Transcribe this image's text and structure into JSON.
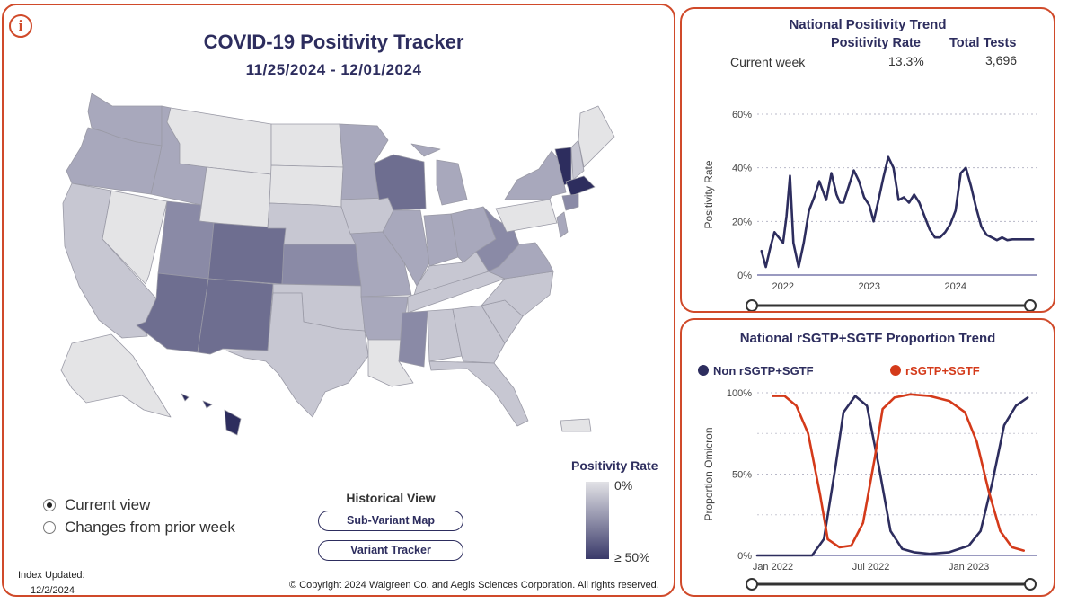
{
  "header": {
    "title": "COVID-19 Positivity Tracker",
    "date_range": "11/25/2024 - 12/01/2024",
    "info_icon": "i"
  },
  "view_options": [
    {
      "label": "Current view",
      "selected": true
    },
    {
      "label": "Changes from prior week",
      "selected": false
    }
  ],
  "historical": {
    "label": "Historical View",
    "buttons": [
      "Sub-Variant Map",
      "Variant Tracker"
    ]
  },
  "legend": {
    "title": "Positivity Rate",
    "min_label": "0%",
    "max_label": "≥ 50%",
    "colors": {
      "low": "#e2e2e6",
      "high": "#3a3a6a"
    }
  },
  "footer": {
    "index_label": "Index Updated:",
    "index_date": "12/2/2024",
    "copyright": "© Copyright 2024 Walgreen Co. and Aegis Sciences Corporation. All rights reserved."
  },
  "national_trend": {
    "title": "National Positivity Trend",
    "columns": [
      "Positivity Rate",
      "Total Tests"
    ],
    "row": {
      "label": "Current week",
      "rate": "13.3%",
      "tests": "3,696"
    },
    "chart_data": {
      "type": "line",
      "ylabel": "Positivity Rate",
      "y_ticks": [
        "0%",
        "20%",
        "40%",
        "60%"
      ],
      "ylim": [
        0,
        60
      ],
      "x_ticks": [
        "2022",
        "2023",
        "2024"
      ],
      "xlim": [
        2021.7,
        2024.95
      ],
      "series": [
        {
          "color": "#2d2d5e",
          "x": [
            2021.75,
            2021.8,
            2021.85,
            2021.9,
            2021.95,
            2022.0,
            2022.04,
            2022.08,
            2022.12,
            2022.18,
            2022.24,
            2022.3,
            2022.36,
            2022.42,
            2022.5,
            2022.56,
            2022.62,
            2022.66,
            2022.7,
            2022.76,
            2022.82,
            2022.88,
            2022.94,
            2023.0,
            2023.05,
            2023.1,
            2023.16,
            2023.22,
            2023.28,
            2023.34,
            2023.4,
            2023.46,
            2023.52,
            2023.58,
            2023.64,
            2023.7,
            2023.76,
            2023.82,
            2023.88,
            2023.94,
            2024.0,
            2024.06,
            2024.12,
            2024.18,
            2024.24,
            2024.3,
            2024.36,
            2024.42,
            2024.48,
            2024.54,
            2024.6,
            2024.66,
            2024.72,
            2024.78,
            2024.84,
            2024.9
          ],
          "y": [
            9,
            3,
            10,
            16,
            14,
            12,
            22,
            37,
            12,
            3,
            12,
            24,
            29,
            35,
            28,
            38,
            30,
            27,
            27,
            33,
            39,
            35,
            29,
            26,
            20,
            27,
            36,
            44,
            40,
            28,
            29,
            27,
            30,
            27,
            22,
            17,
            14,
            14,
            16,
            19,
            24,
            38,
            40,
            33,
            25,
            18,
            15,
            14,
            13,
            14,
            13,
            13.3,
            13.3,
            13.3,
            13.3,
            13.3
          ]
        }
      ]
    }
  },
  "variant_trend": {
    "title": "National rSGTP+SGTF Proportion Trend",
    "chart_data": {
      "type": "line",
      "ylabel": "Proportion Omicron",
      "y_ticks": [
        "0%",
        "50%",
        "100%"
      ],
      "ylim": [
        0,
        100
      ],
      "x_ticks": [
        "Jan 2022",
        "Jul 2022",
        "Jan 2023"
      ],
      "xlim": [
        2021.92,
        2023.35
      ],
      "series": [
        {
          "name": "Non rSGTP+SGTF",
          "color": "#2d2d5e",
          "x": [
            2021.92,
            2022.0,
            2022.1,
            2022.2,
            2022.26,
            2022.32,
            2022.36,
            2022.42,
            2022.48,
            2022.54,
            2022.6,
            2022.66,
            2022.72,
            2022.8,
            2022.9,
            2023.0,
            2023.06,
            2023.12,
            2023.18,
            2023.24,
            2023.3
          ],
          "y": [
            0,
            0,
            0,
            0,
            10,
            55,
            88,
            98,
            92,
            55,
            15,
            4,
            2,
            1,
            2,
            6,
            15,
            45,
            80,
            92,
            97
          ]
        },
        {
          "name": "rSGTP+SGTF",
          "color": "#d43a1a",
          "x": [
            2022.0,
            2022.06,
            2022.12,
            2022.18,
            2022.24,
            2022.28,
            2022.34,
            2022.4,
            2022.46,
            2022.52,
            2022.56,
            2022.62,
            2022.7,
            2022.8,
            2022.9,
            2022.98,
            2023.04,
            2023.1,
            2023.16,
            2023.22,
            2023.28
          ],
          "y": [
            98,
            98,
            92,
            75,
            38,
            10,
            5,
            6,
            20,
            60,
            90,
            97,
            99,
            98,
            95,
            88,
            70,
            40,
            15,
            5,
            3
          ]
        }
      ]
    }
  },
  "map": {
    "color_scale": [
      "#e4e4e6",
      "#c7c7d2",
      "#a8a8bc",
      "#8a8aa6",
      "#6e6e90",
      "#2d2d5e"
    ],
    "states": [
      {
        "id": "WA",
        "level": 2
      },
      {
        "id": "OR",
        "level": 2
      },
      {
        "id": "CA",
        "level": 1
      },
      {
        "id": "NV",
        "level": 0
      },
      {
        "id": "ID",
        "level": 2
      },
      {
        "id": "MT",
        "level": 0
      },
      {
        "id": "WY",
        "level": 0
      },
      {
        "id": "UT",
        "level": 3
      },
      {
        "id": "AZ",
        "level": 4
      },
      {
        "id": "CO",
        "level": 4
      },
      {
        "id": "NM",
        "level": 4
      },
      {
        "id": "ND",
        "level": 0
      },
      {
        "id": "SD",
        "level": 0
      },
      {
        "id": "NE",
        "level": 1
      },
      {
        "id": "KS",
        "level": 3
      },
      {
        "id": "OK",
        "level": 1
      },
      {
        "id": "TX",
        "level": 1
      },
      {
        "id": "MN",
        "level": 2
      },
      {
        "id": "IA",
        "level": 1
      },
      {
        "id": "MO",
        "level": 2
      },
      {
        "id": "AR",
        "level": 2
      },
      {
        "id": "LA",
        "level": 0
      },
      {
        "id": "WI",
        "level": 4
      },
      {
        "id": "IL",
        "level": 2
      },
      {
        "id": "MI",
        "level": 2
      },
      {
        "id": "IN",
        "level": 2
      },
      {
        "id": "OH",
        "level": 2
      },
      {
        "id": "KY",
        "level": 1
      },
      {
        "id": "TN",
        "level": 1
      },
      {
        "id": "MS",
        "level": 3
      },
      {
        "id": "AL",
        "level": 1
      },
      {
        "id": "GA",
        "level": 1
      },
      {
        "id": "FL",
        "level": 1
      },
      {
        "id": "SC",
        "level": 1
      },
      {
        "id": "NC",
        "level": 1
      },
      {
        "id": "VA",
        "level": 2
      },
      {
        "id": "WV",
        "level": 3
      },
      {
        "id": "PA",
        "level": 0
      },
      {
        "id": "NY",
        "level": 2
      },
      {
        "id": "VT",
        "level": 5
      },
      {
        "id": "NH",
        "level": 1
      },
      {
        "id": "ME",
        "level": 0
      },
      {
        "id": "MA",
        "level": 5
      },
      {
        "id": "CT",
        "level": 3
      },
      {
        "id": "NJ",
        "level": 2
      },
      {
        "id": "AK",
        "level": 0
      },
      {
        "id": "HI",
        "level": 5
      },
      {
        "id": "PR",
        "level": 0
      }
    ]
  }
}
